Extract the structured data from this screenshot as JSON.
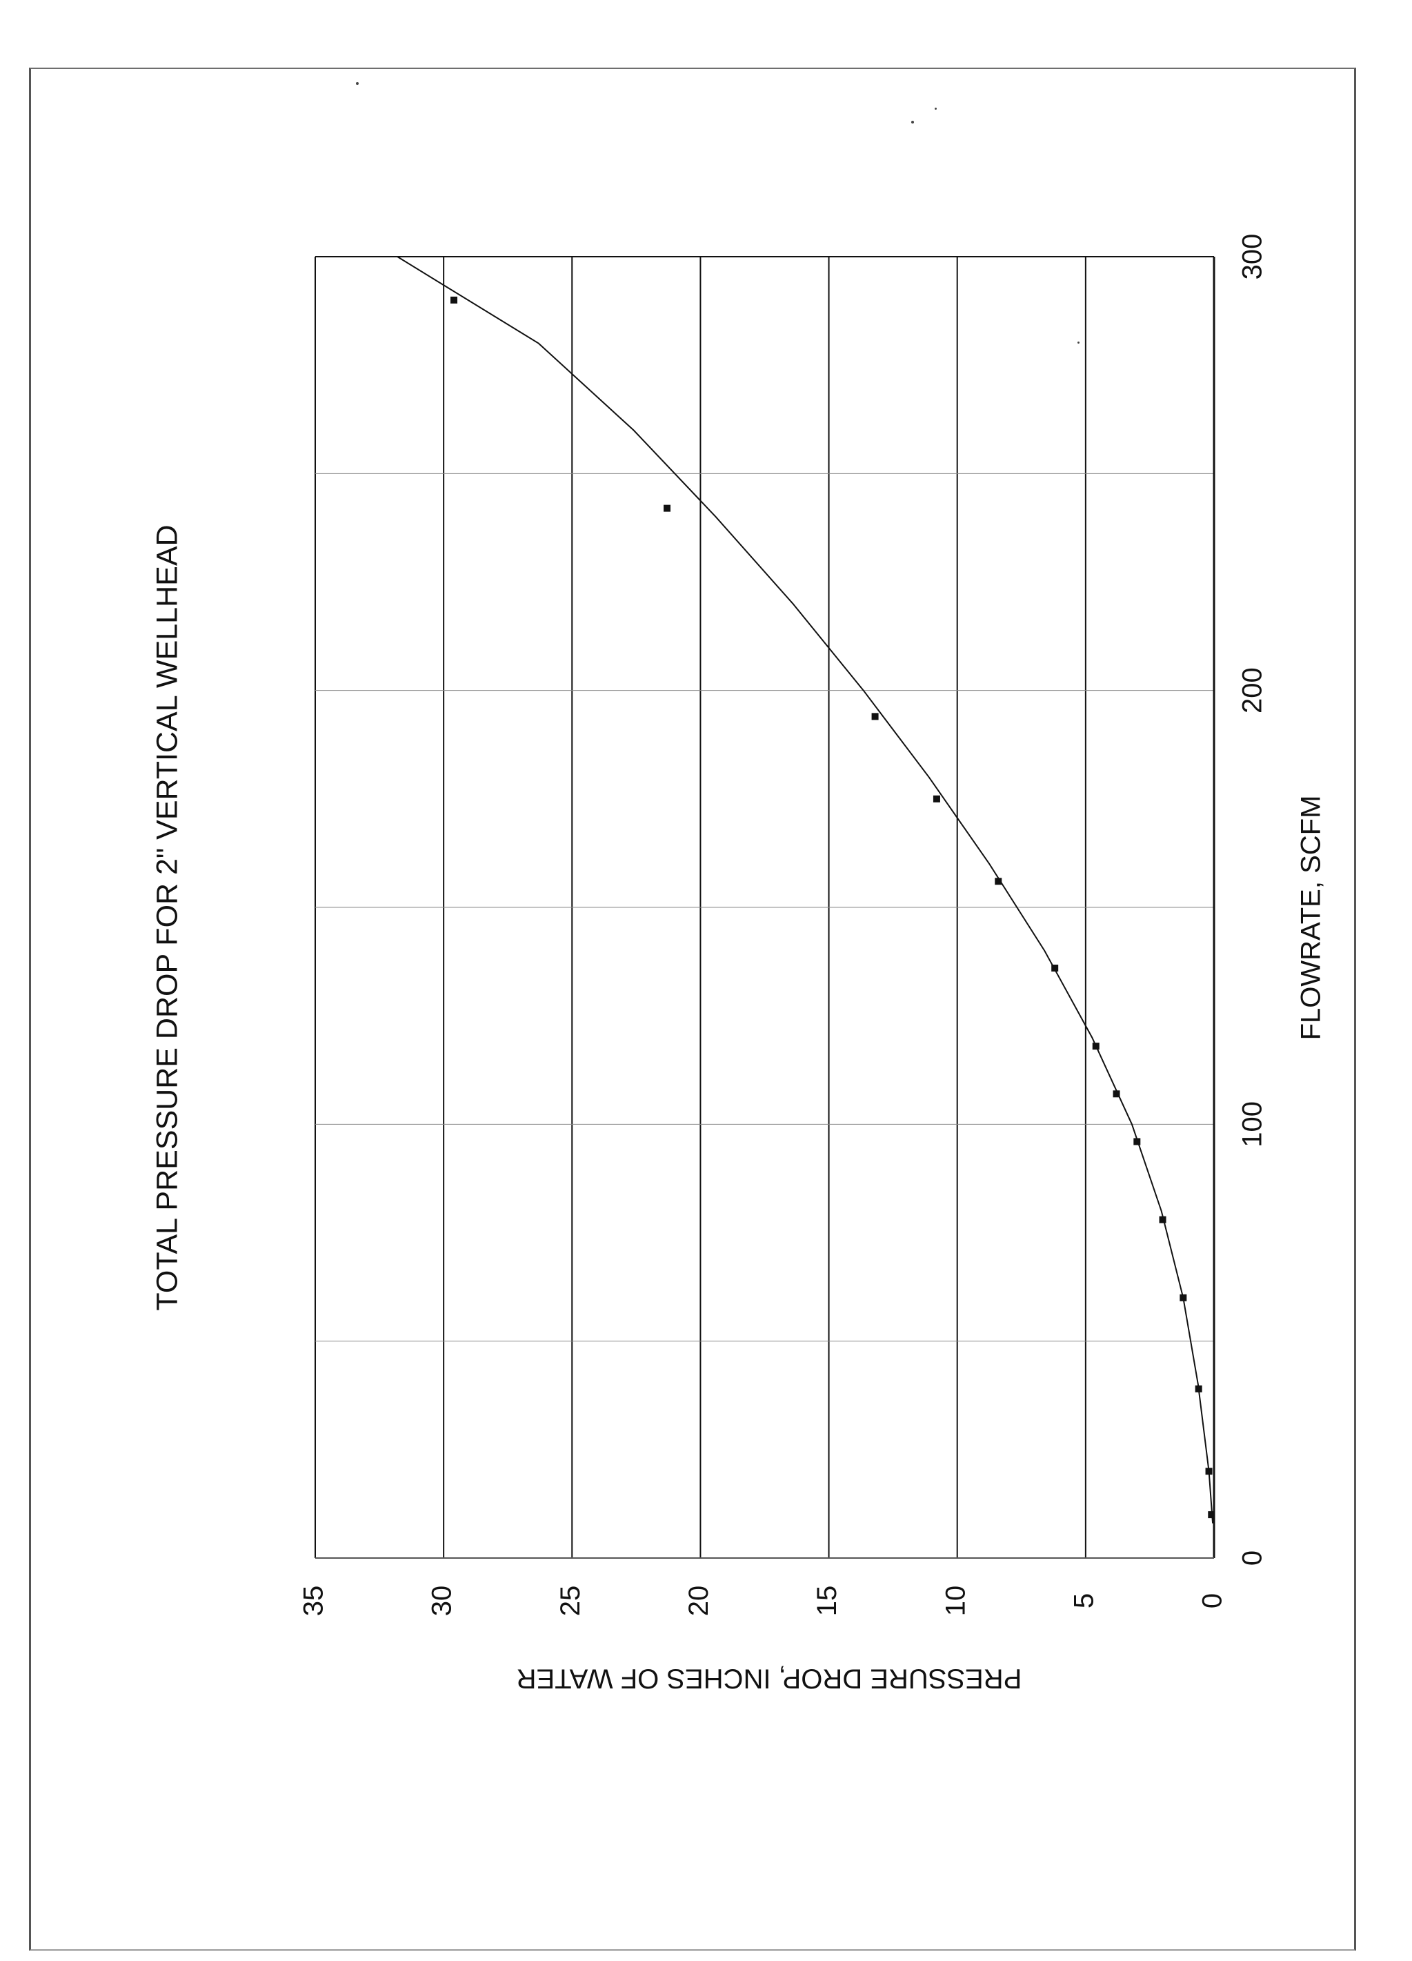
{
  "chart_data": {
    "type": "line",
    "title": "TOTAL PRESSURE DROP FOR 2\" VERTICAL WELLHEAD",
    "xlabel": "FLOWRATE, SCFM",
    "ylabel": "PRESSURE DROP, INCHES OF WATER",
    "xlim": [
      0,
      300
    ],
    "ylim": [
      0,
      35
    ],
    "x_ticks": [
      0,
      100,
      200,
      300
    ],
    "x_tick_labels": [
      "0",
      "100",
      "200",
      "300"
    ],
    "y_ticks": [
      0,
      5,
      10,
      15,
      20,
      25,
      30,
      35
    ],
    "y_tick_labels": [
      "0",
      "5",
      "10",
      "15",
      "20",
      "25",
      "30",
      "35"
    ],
    "x_minor_gridlines": [
      50,
      150,
      250
    ],
    "grid": true,
    "legend": "none",
    "orientation": "rotated 90 degrees counter-clockwise",
    "colors": {
      "ink": "#111111",
      "background": "#ffffff"
    },
    "series": [
      {
        "points": [
          {
            "x": 10,
            "y": 0.1
          },
          {
            "x": 20,
            "y": 0.2
          },
          {
            "x": 39,
            "y": 0.6
          },
          {
            "x": 60,
            "y": 1.2
          },
          {
            "x": 78,
            "y": 2.0
          },
          {
            "x": 96,
            "y": 3.0
          },
          {
            "x": 107,
            "y": 3.8
          },
          {
            "x": 118,
            "y": 4.6
          },
          {
            "x": 136,
            "y": 6.2
          },
          {
            "x": 156,
            "y": 8.4
          },
          {
            "x": 175,
            "y": 10.8
          },
          {
            "x": 194,
            "y": 13.2
          },
          {
            "x": 242,
            "y": 21.3
          },
          {
            "x": 290,
            "y": 29.6
          }
        ],
        "fit_curve": {
          "x": [
            8,
            20,
            40,
            60,
            80,
            100,
            120,
            140,
            160,
            180,
            200,
            220,
            240,
            260,
            280,
            300
          ],
          "y": [
            0.05,
            0.2,
            0.62,
            1.2,
            2.05,
            3.2,
            4.75,
            6.6,
            8.75,
            11.1,
            13.65,
            16.4,
            19.4,
            22.6,
            26.3,
            31.8
          ]
        }
      }
    ]
  }
}
